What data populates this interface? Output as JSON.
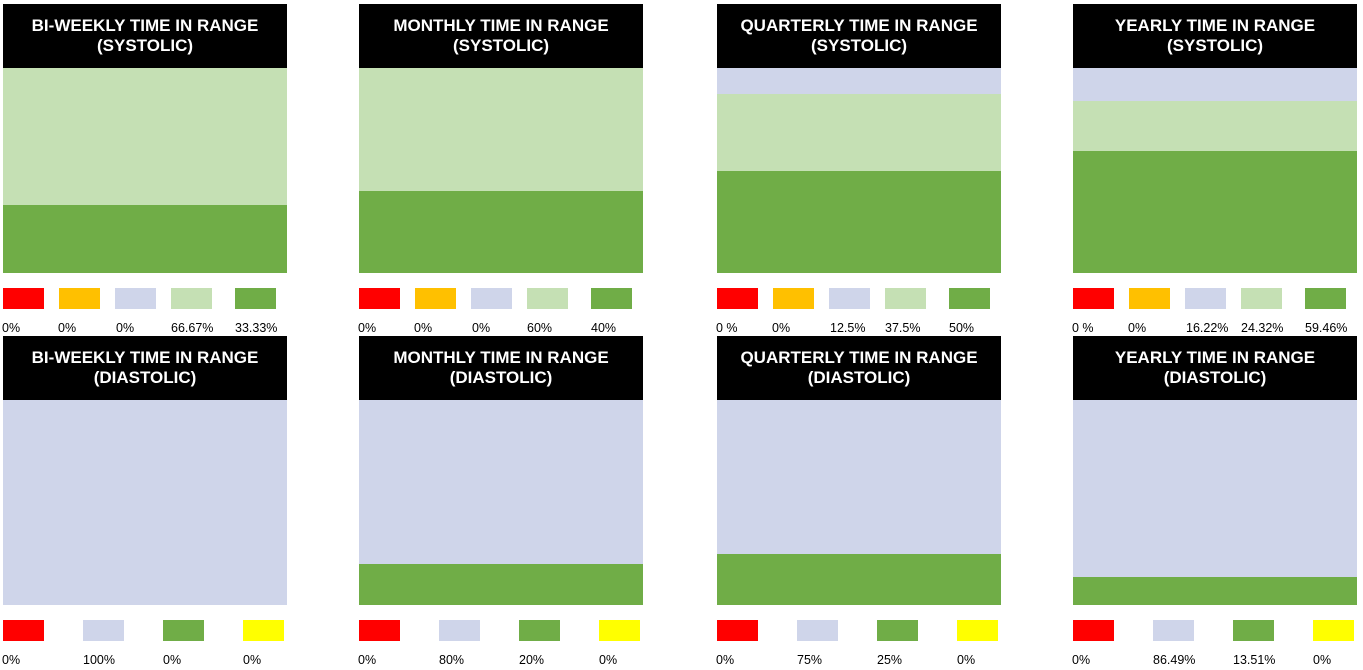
{
  "colors": {
    "red": "#ff0000",
    "orange": "#ffc000",
    "lavender": "#cfd5ea",
    "lightgreen": "#c5e0b4",
    "green": "#70ad47",
    "yellow": "#ffff00"
  },
  "chart_data": [
    {
      "type": "bar",
      "title": "BI-WEEKLY TIME IN RANGE (SYSTOLIC)",
      "stack": [
        {
          "color": "lightgreen",
          "value": 66.67
        },
        {
          "color": "green",
          "value": 33.33
        }
      ],
      "legend": [
        {
          "color": "red",
          "label": "0%"
        },
        {
          "color": "orange",
          "label": "0%"
        },
        {
          "color": "lavender",
          "label": "0%"
        },
        {
          "color": "lightgreen",
          "label": "66.67%"
        },
        {
          "color": "green",
          "label": "33.33%"
        }
      ]
    },
    {
      "type": "bar",
      "title": "MONTHLY TIME IN RANGE (SYSTOLIC)",
      "stack": [
        {
          "color": "lightgreen",
          "value": 60
        },
        {
          "color": "green",
          "value": 40
        }
      ],
      "legend": [
        {
          "color": "red",
          "label": "0%"
        },
        {
          "color": "orange",
          "label": "0%"
        },
        {
          "color": "lavender",
          "label": "0%"
        },
        {
          "color": "lightgreen",
          "label": "60%"
        },
        {
          "color": "green",
          "label": "40%"
        }
      ]
    },
    {
      "type": "bar",
      "title": "QUARTERLY TIME IN RANGE (SYSTOLIC)",
      "stack": [
        {
          "color": "lavender",
          "value": 12.5
        },
        {
          "color": "lightgreen",
          "value": 37.5
        },
        {
          "color": "green",
          "value": 50
        }
      ],
      "legend": [
        {
          "color": "red",
          "label": "0 %"
        },
        {
          "color": "orange",
          "label": "0%"
        },
        {
          "color": "lavender",
          "label": "12.5%"
        },
        {
          "color": "lightgreen",
          "label": "37.5%"
        },
        {
          "color": "green",
          "label": "50%"
        }
      ]
    },
    {
      "type": "bar",
      "title": "YEARLY TIME IN RANGE (SYSTOLIC)",
      "stack": [
        {
          "color": "lavender",
          "value": 16.22
        },
        {
          "color": "lightgreen",
          "value": 24.32
        },
        {
          "color": "green",
          "value": 59.46
        }
      ],
      "legend": [
        {
          "color": "red",
          "label": "0 %"
        },
        {
          "color": "orange",
          "label": "0%"
        },
        {
          "color": "lavender",
          "label": "16.22%"
        },
        {
          "color": "lightgreen",
          "label": "24.32%"
        },
        {
          "color": "green",
          "label": "59.46%"
        }
      ]
    },
    {
      "type": "bar",
      "title": "BI-WEEKLY TIME IN RANGE (DIASTOLIC)",
      "stack": [
        {
          "color": "lavender",
          "value": 100
        }
      ],
      "legend": [
        {
          "color": "red",
          "label": "0%"
        },
        {
          "color": "lavender",
          "label": "100%"
        },
        {
          "color": "green",
          "label": "0%"
        },
        {
          "color": "yellow",
          "label": "0%"
        }
      ]
    },
    {
      "type": "bar",
      "title": "MONTHLY TIME IN RANGE (DIASTOLIC)",
      "stack": [
        {
          "color": "lavender",
          "value": 80
        },
        {
          "color": "green",
          "value": 20
        }
      ],
      "legend": [
        {
          "color": "red",
          "label": "0%"
        },
        {
          "color": "lavender",
          "label": "80%"
        },
        {
          "color": "green",
          "label": "20%"
        },
        {
          "color": "yellow",
          "label": "0%"
        }
      ]
    },
    {
      "type": "bar",
      "title": "QUARTERLY TIME IN RANGE (DIASTOLIC)",
      "stack": [
        {
          "color": "lavender",
          "value": 75
        },
        {
          "color": "green",
          "value": 25
        }
      ],
      "legend": [
        {
          "color": "red",
          "label": "0%"
        },
        {
          "color": "lavender",
          "label": "75%"
        },
        {
          "color": "green",
          "label": "25%"
        },
        {
          "color": "yellow",
          "label": "0%"
        }
      ]
    },
    {
      "type": "bar",
      "title": "YEARLY TIME IN RANGE (DIASTOLIC)",
      "stack": [
        {
          "color": "lavender",
          "value": 86.49
        },
        {
          "color": "green",
          "value": 13.51
        }
      ],
      "legend": [
        {
          "color": "red",
          "label": "0%"
        },
        {
          "color": "lavender",
          "label": "86.49%"
        },
        {
          "color": "green",
          "label": "13.51%"
        },
        {
          "color": "yellow",
          "label": "0%"
        }
      ]
    }
  ]
}
